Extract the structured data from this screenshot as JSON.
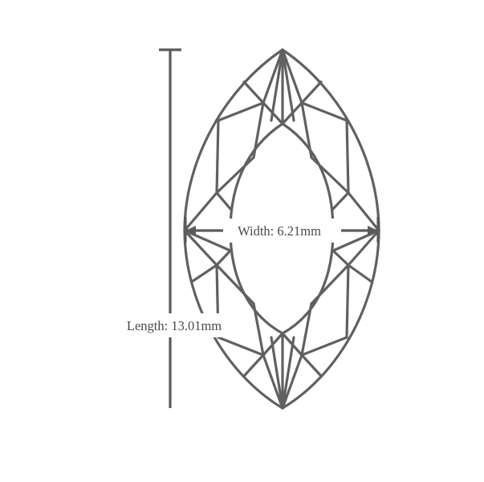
{
  "shape": "marquise",
  "colors": {
    "outline": "#606060",
    "dimension": "#5a5a5a",
    "text": "#4a4a4a",
    "background": "#ffffff"
  },
  "width": {
    "label": "Width: 6.21mm"
  },
  "length": {
    "label": "Length: 13.01mm"
  }
}
